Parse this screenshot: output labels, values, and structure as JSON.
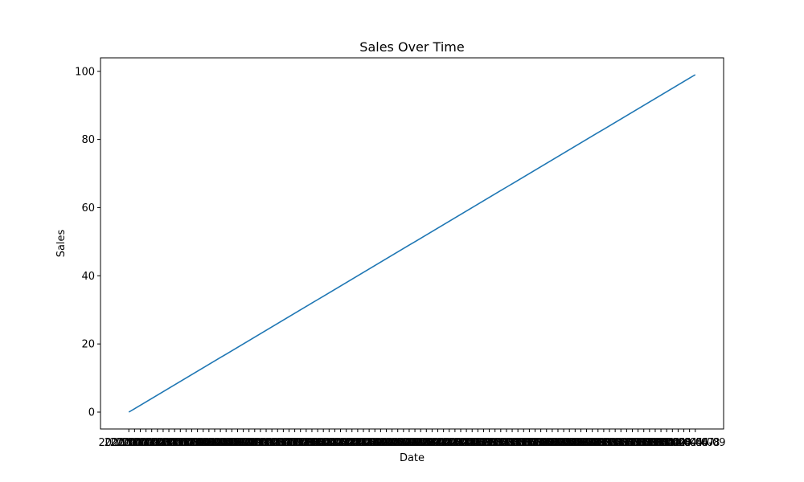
{
  "chart_data": {
    "type": "line",
    "title": "Sales Over Time",
    "xlabel": "Date",
    "ylabel": "Sales",
    "x_start": "2020-01-01",
    "x_end": "2020-04-09",
    "x_count": 100,
    "y_start": 0,
    "y_end": 99,
    "y_ticks": [
      0,
      20,
      40,
      60,
      80,
      100
    ],
    "ylim": [
      -4.95,
      103.95
    ],
    "grid": false,
    "legend": "none",
    "series": [
      {
        "color": "#1f77b4"
      }
    ]
  }
}
